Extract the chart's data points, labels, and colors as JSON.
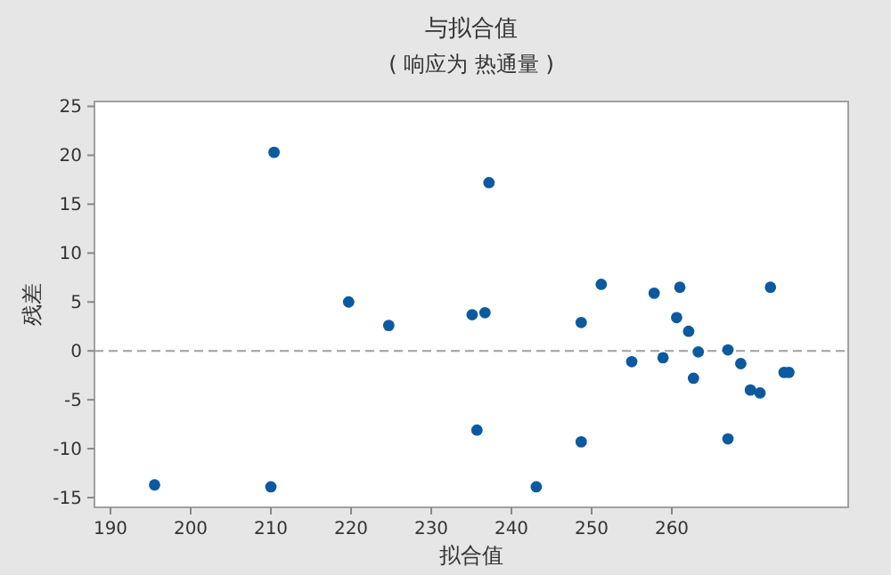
{
  "chart_data": {
    "type": "scatter",
    "title": "与拟合值",
    "subtitle": "( 响应为 热通量 )",
    "xlabel": "拟合值",
    "ylabel": "残差",
    "x": [
      195.5,
      210.4,
      210.0,
      219.7,
      224.7,
      235.1,
      236.7,
      235.7,
      237.2,
      243.1,
      248.7,
      248.7,
      251.2,
      255.0,
      257.8,
      258.9,
      260.6,
      261.0,
      262.1,
      262.7,
      263.3,
      267.0,
      267.0,
      268.6,
      269.8,
      271.0,
      272.3,
      274.0,
      274.6
    ],
    "series": [
      {
        "color": "#0b5aa0",
        "values": [
          -13.7,
          20.3,
          -13.9,
          5.0,
          2.6,
          3.7,
          3.9,
          -8.1,
          17.2,
          -13.9,
          2.9,
          -9.3,
          6.8,
          -1.1,
          5.9,
          -0.7,
          3.4,
          6.5,
          2.0,
          -2.8,
          -0.1,
          0.1,
          -9.0,
          -1.3,
          -4.0,
          -4.3,
          6.5,
          -2.2,
          -2.2
        ]
      }
    ],
    "xlim": [
      188,
      282
    ],
    "xticks": [
      190,
      200,
      210,
      220,
      230,
      240,
      250,
      260
    ],
    "ylim": [
      -16,
      25.5
    ],
    "yticks": [
      -15,
      -10,
      -5,
      0,
      5,
      10,
      15,
      20,
      25
    ],
    "ref_lines": [
      {
        "axis": "y",
        "value": 0,
        "color": "#a0a0a0",
        "line_style": "dashed"
      }
    ],
    "marker": "circle"
  }
}
